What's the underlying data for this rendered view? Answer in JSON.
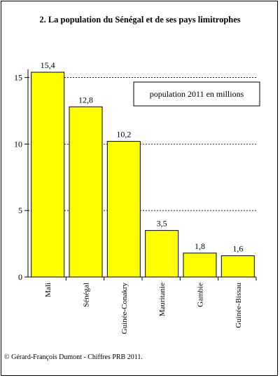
{
  "chart_data": {
    "type": "bar",
    "title": "2. La population du Sénégal et de ses pays limitrophes",
    "legend_text": "population 2011 en millions",
    "categories": [
      "Mali",
      "Sénégal",
      "Guinée-Conakry",
      "Mauritanie",
      "Gambie",
      "Guinée-Bissau"
    ],
    "values": [
      15.4,
      12.8,
      10.2,
      3.5,
      1.8,
      1.6
    ],
    "value_labels": [
      "15,4",
      "12,8",
      "10,2",
      "3,5",
      "1,8",
      "1,6"
    ],
    "yticks": [
      "0",
      "5",
      "10",
      "15"
    ],
    "ytick_values": [
      0,
      5,
      10,
      15
    ],
    "ylim": [
      0,
      15.4
    ],
    "grid": "dashed horizontal at 5, 10, 15",
    "legend_position": "top-right",
    "bar_color": "#ffff00",
    "xlabel": "",
    "ylabel": ""
  },
  "source": "© Gérard-François Dumont - Chiffres PRB 2011."
}
